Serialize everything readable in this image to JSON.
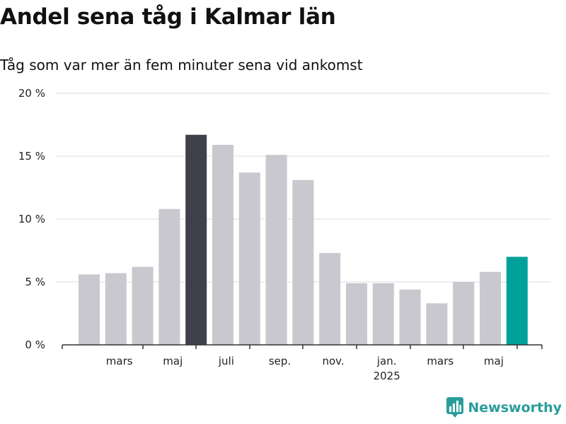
{
  "chart_data": {
    "type": "bar",
    "title": "Andel sena tåg i Kalmar län",
    "subtitle": "Tåg som var mer än fem minuter sena vid ankomst",
    "xlabel": "",
    "ylabel": "",
    "ylim": [
      0,
      20
    ],
    "yticks": [
      "0 %",
      "5 %",
      "10 %",
      "15 %",
      "20 %"
    ],
    "ytick_values": [
      0,
      5,
      10,
      15,
      20
    ],
    "grid": true,
    "legend": "none",
    "x": [
      "2024-02",
      "2024-03",
      "2024-04",
      "2024-05",
      "2024-06",
      "2024-07",
      "2024-08",
      "2024-09",
      "2024-10",
      "2024-11",
      "2024-12",
      "2025-01",
      "2025-02",
      "2025-03",
      "2025-04",
      "2025-05",
      "2025-06"
    ],
    "values": [
      5.6,
      5.7,
      6.2,
      10.8,
      16.7,
      15.9,
      13.7,
      15.1,
      13.1,
      7.3,
      4.9,
      4.9,
      4.4,
      3.3,
      5.0,
      5.8,
      7.0
    ],
    "bar_colors": [
      "#c8c8ce",
      "#c8c8ce",
      "#c8c8ce",
      "#c8c8ce",
      "#40404c",
      "#c8c8ce",
      "#c8c8ce",
      "#c8c8ce",
      "#c8c8ce",
      "#c8c8ce",
      "#c8c8ce",
      "#c8c8ce",
      "#c8c8ce",
      "#c8c8ce",
      "#c8c8ce",
      "#c8c8ce",
      "#00a19a"
    ],
    "xtick_labels": [
      {
        "label": "mars",
        "index": 1
      },
      {
        "label": "maj",
        "index": 3
      },
      {
        "label": "juli",
        "index": 5
      },
      {
        "label": "sep.",
        "index": 7
      },
      {
        "label": "nov.",
        "index": 9
      },
      {
        "label": "jan.",
        "index": 11
      },
      {
        "label": "mars",
        "index": 13
      },
      {
        "label": "maj",
        "index": 15
      }
    ],
    "year_label": {
      "label": "2025",
      "index": 11
    }
  },
  "colors": {
    "default_bar": "#c8c8ce",
    "highlight_max": "#40404c",
    "highlight_latest": "#00a19a",
    "grid": "#dddddd",
    "axis": "#333333",
    "brand": "#2a9d9b"
  },
  "brand": {
    "name": "Newsworthy",
    "icon": "bar-chart-logo-icon"
  }
}
